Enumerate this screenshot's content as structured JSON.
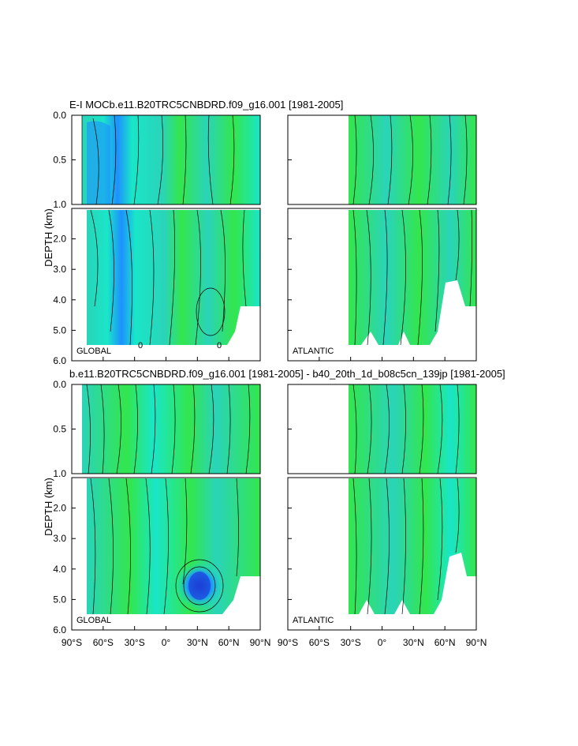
{
  "chart_data": {
    "type": "heatmap",
    "colors": {
      "lightgreen": "#33ff33",
      "green": "#33e64d",
      "cyan": "#19e6c8",
      "teal": "#2ad4b9",
      "blue": "#1e90ff",
      "darkblue": "#1c3fd4"
    },
    "panels": [
      {
        "title": "E-I MOCb.e11.B20TRC5CNBDRD.f09_g16.001 [1981-2005]",
        "ylabel": "DEPTH (km)",
        "regions": [
          "GLOBAL",
          "ATLANTIC"
        ],
        "top_ticks": [
          "0.0",
          "0.5",
          "1.0"
        ],
        "bottom_ticks": [
          "2.0",
          "3.0",
          "4.0",
          "5.0",
          "6.0"
        ],
        "contour_labels": [
          "0",
          "0"
        ]
      },
      {
        "title": "b.e11.B20TRC5CNBDRD.f09_g16.001 [1981-2005] - b40_20th_1d_b08c5cn_139jp [1981-2005]",
        "ylabel": "DEPTH (km)",
        "regions": [
          "GLOBAL",
          "ATLANTIC"
        ],
        "top_ticks": [
          "0.0",
          "0.5",
          "1.0"
        ],
        "bottom_ticks": [
          "2.0",
          "3.0",
          "4.0",
          "5.0",
          "6.0"
        ],
        "contour_labels": []
      }
    ],
    "x_ticks": [
      "90°S",
      "60°S",
      "30°S",
      "0°",
      "30°N",
      "60°N",
      "90°N"
    ],
    "xlim": [
      -90,
      90
    ],
    "ylim_top": [
      0,
      1
    ],
    "ylim_bottom": [
      1,
      6
    ]
  }
}
